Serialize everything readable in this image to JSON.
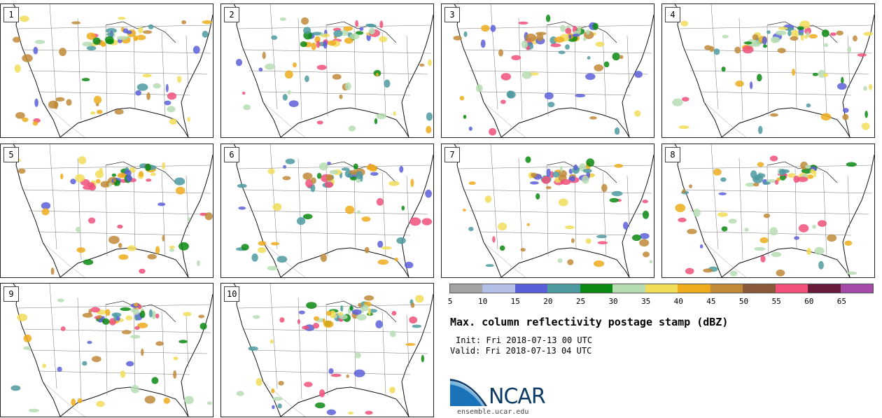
{
  "panels": [
    {
      "label": "1"
    },
    {
      "label": "2"
    },
    {
      "label": "3"
    },
    {
      "label": "4"
    },
    {
      "label": "5"
    },
    {
      "label": "6"
    },
    {
      "label": "7"
    },
    {
      "label": "8"
    },
    {
      "label": "9"
    },
    {
      "label": "10"
    }
  ],
  "colorbar": {
    "colors": [
      "#a3a3a3",
      "#b4bfe8",
      "#5a5fd8",
      "#4d9aa0",
      "#0a8a12",
      "#b6dcb4",
      "#f1dc58",
      "#eeac1c",
      "#c08a38",
      "#8a5a3a",
      "#f0507a",
      "#6a1a3a",
      "#a64aaa"
    ],
    "ticks": [
      "5",
      "10",
      "15",
      "20",
      "25",
      "30",
      "35",
      "40",
      "45",
      "50",
      "55",
      "60",
      "65"
    ]
  },
  "title": "Max. column reflectivity postage stamp (dBZ)",
  "init": "Init: Fri 2018-07-13 00 UTC",
  "valid": "Valid: Fri 2018-07-13 04 UTC",
  "logo": {
    "text": "NCAR",
    "site": "ensemble.ucar.edu"
  }
}
